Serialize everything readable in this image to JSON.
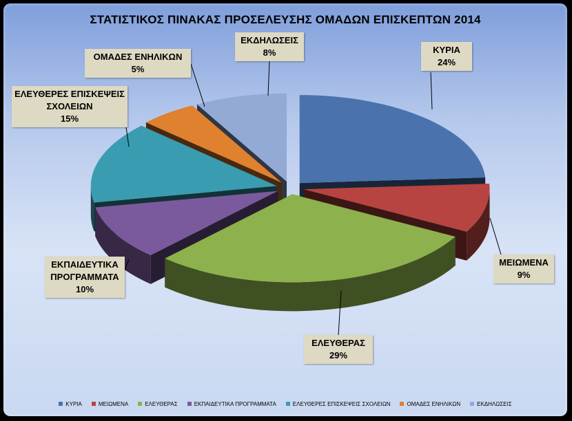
{
  "chart_data": {
    "type": "pie",
    "title": "ΣΤΑΤΙΣΤΙΚΟΣ ΠΙΝΑΚΑΣ ΠΡΟΣΕΛΕΥΣΗΣ ΟΜΑΔΩΝ ΕΠΙΣΚΕΠΤΩΝ  2014",
    "three_d": true,
    "exploded": true,
    "legend_position": "bottom",
    "slices": [
      {
        "name": "ΚΥΡΙΑ",
        "label": "ΚΥΡΙΑ",
        "value": 24,
        "value_label": "24%",
        "color": "#4a73ad"
      },
      {
        "name": "ΜΕΙΩΜΕΝΑ",
        "label": "ΜΕΙΩΜΕΝΑ",
        "value": 9,
        "value_label": "9%",
        "color": "#b74441"
      },
      {
        "name": "ΕΛΕΥΘΕΡΑΣ",
        "label": "ΕΛΕΥΘΕΡΑΣ",
        "value": 29,
        "value_label": "29%",
        "color": "#8db14c"
      },
      {
        "name": "ΕΚΠΑΙΔΕΥΤΙΚΑ ΠΡΟΓΡΑΜΜΑΤΑ",
        "label": "ΕΚΠΑΙΔΕΥΤΙΚΑ ΠΡΟΓΡΑΜΜΑΤΑ",
        "value": 10,
        "value_label": "10%",
        "color": "#7a5a9c"
      },
      {
        "name": "ΕΛΕΥΘΕΡΕΣ ΕΠΙΣΚΕΨΕΙΣ ΣΧΟΛΕΙΩΝ",
        "label": "ΕΛΕΥΘΕΡΕΣ ΕΠΙΣΚΕΨΕΙΣ ΣΧΟΛΕΙΩΝ",
        "value": 15,
        "value_label": "15%",
        "color": "#3a9cb0"
      },
      {
        "name": "ΟΜΑΔΕΣ ΕΝΗΛΙΚΩΝ",
        "label": "ΟΜΑΔΕΣ ΕΝΗΛΙΚΩΝ",
        "value": 5,
        "value_label": "5%",
        "color": "#e0812f"
      },
      {
        "name": "ΕΚΔΗΛΩΣΕΙΣ",
        "label": "ΕΚΔΗΛΩΣΕΙΣ",
        "value": 8,
        "value_label": "8%",
        "color": "#93aad5"
      }
    ]
  }
}
